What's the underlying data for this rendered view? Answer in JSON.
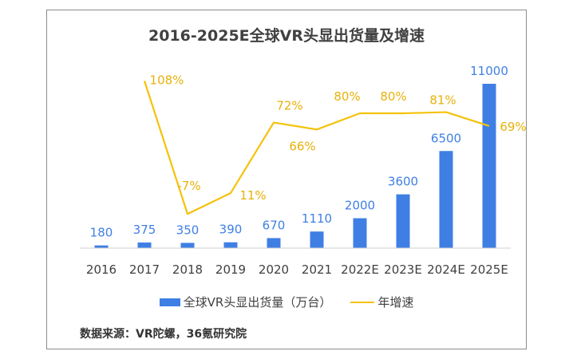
{
  "chart_data": {
    "type": "bar",
    "title": "2016-2025E全球VR头显出货量及增速",
    "categories": [
      "2016",
      "2017",
      "2018",
      "2019",
      "2020",
      "2021",
      "2022E",
      "2023E",
      "2024E",
      "2025E"
    ],
    "series": [
      {
        "name": "全球VR头显出货量（万台）",
        "type": "bar",
        "values": [
          180,
          375,
          350,
          390,
          670,
          1110,
          2000,
          3600,
          6500,
          11000
        ],
        "labels": [
          "180",
          "375",
          "350",
          "390",
          "670",
          "1110",
          "2000",
          "3600",
          "6500",
          "11000"
        ],
        "color": "#3f7fe4"
      },
      {
        "name": "年增速",
        "type": "line",
        "values": [
          null,
          108,
          -7,
          11,
          72,
          66,
          80,
          80,
          81,
          69
        ],
        "labels": [
          "",
          "108%",
          "-7%",
          "11%",
          "72%",
          "66%",
          "80%",
          "80%",
          "81%",
          "69%"
        ],
        "color": "#f5c20a"
      }
    ],
    "legend_position": "bottom",
    "grid": false
  },
  "source": "数据来源：VR陀螺，36氪研究院"
}
